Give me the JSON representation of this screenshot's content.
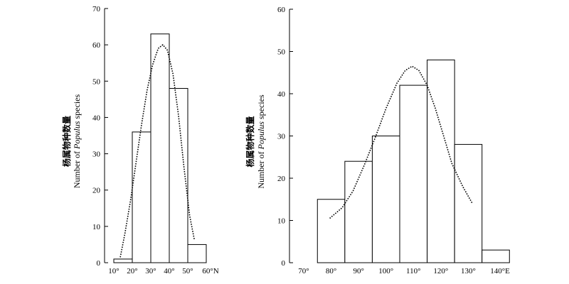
{
  "chart_data": [
    {
      "type": "bar",
      "subtype": "histogram",
      "x_tick_labels": [
        "10°",
        "20°",
        "30°",
        "40°",
        "50°",
        "60°N"
      ],
      "bins": [
        [
          10,
          20
        ],
        [
          20,
          30
        ],
        [
          30,
          40
        ],
        [
          40,
          50
        ],
        [
          50,
          60
        ]
      ],
      "values": [
        1,
        36,
        63,
        48,
        5
      ],
      "ylabel_zh": "杨属物种数量",
      "ylabel_en_prefix": "Number of ",
      "ylabel_en_italic": "Populus",
      "ylabel_en_suffix": " species",
      "ylim": [
        0,
        70
      ],
      "yticks": [
        0,
        10,
        20,
        30,
        40,
        50,
        60,
        70
      ],
      "fit_curve": {
        "style": "dotted",
        "points": [
          [
            13.5,
            1.5
          ],
          [
            16,
            8
          ],
          [
            19,
            17
          ],
          [
            22,
            27.5
          ],
          [
            25,
            38
          ],
          [
            28,
            47.5
          ],
          [
            31,
            54.5
          ],
          [
            34,
            59
          ],
          [
            36.5,
            60
          ],
          [
            39,
            58.5
          ],
          [
            42,
            52
          ],
          [
            45,
            40.5
          ],
          [
            48,
            26
          ],
          [
            51,
            13
          ],
          [
            53.5,
            6.5
          ]
        ]
      }
    },
    {
      "type": "bar",
      "subtype": "histogram",
      "x_tick_labels": [
        "70°",
        "80°",
        "90°",
        "100°",
        "110°",
        "120°",
        "130°",
        "140°E"
      ],
      "bins": [
        [
          75,
          85
        ],
        [
          85,
          95
        ],
        [
          95,
          105
        ],
        [
          105,
          115
        ],
        [
          115,
          125
        ],
        [
          125,
          135
        ],
        [
          135,
          145
        ]
      ],
      "values": [
        15,
        24,
        30,
        42,
        48,
        28,
        3
      ],
      "ylabel_zh": "杨属物种数量",
      "ylabel_en_prefix": "Number of ",
      "ylabel_en_italic": "Populus",
      "ylabel_en_suffix": " species",
      "ylim": [
        0,
        60
      ],
      "yticks": [
        0,
        10,
        20,
        30,
        40,
        50,
        60
      ],
      "fit_curve": {
        "style": "dotted",
        "points": [
          [
            79.5,
            10.5
          ],
          [
            84,
            13
          ],
          [
            88,
            17
          ],
          [
            92,
            23
          ],
          [
            96,
            29.5
          ],
          [
            100,
            36.5
          ],
          [
            104,
            42.5
          ],
          [
            107,
            45.5
          ],
          [
            109.5,
            46.5
          ],
          [
            112,
            45.5
          ],
          [
            115,
            42
          ],
          [
            118,
            36.5
          ],
          [
            121,
            30
          ],
          [
            124,
            23.5
          ],
          [
            128,
            18
          ],
          [
            131.5,
            14
          ]
        ]
      }
    }
  ]
}
